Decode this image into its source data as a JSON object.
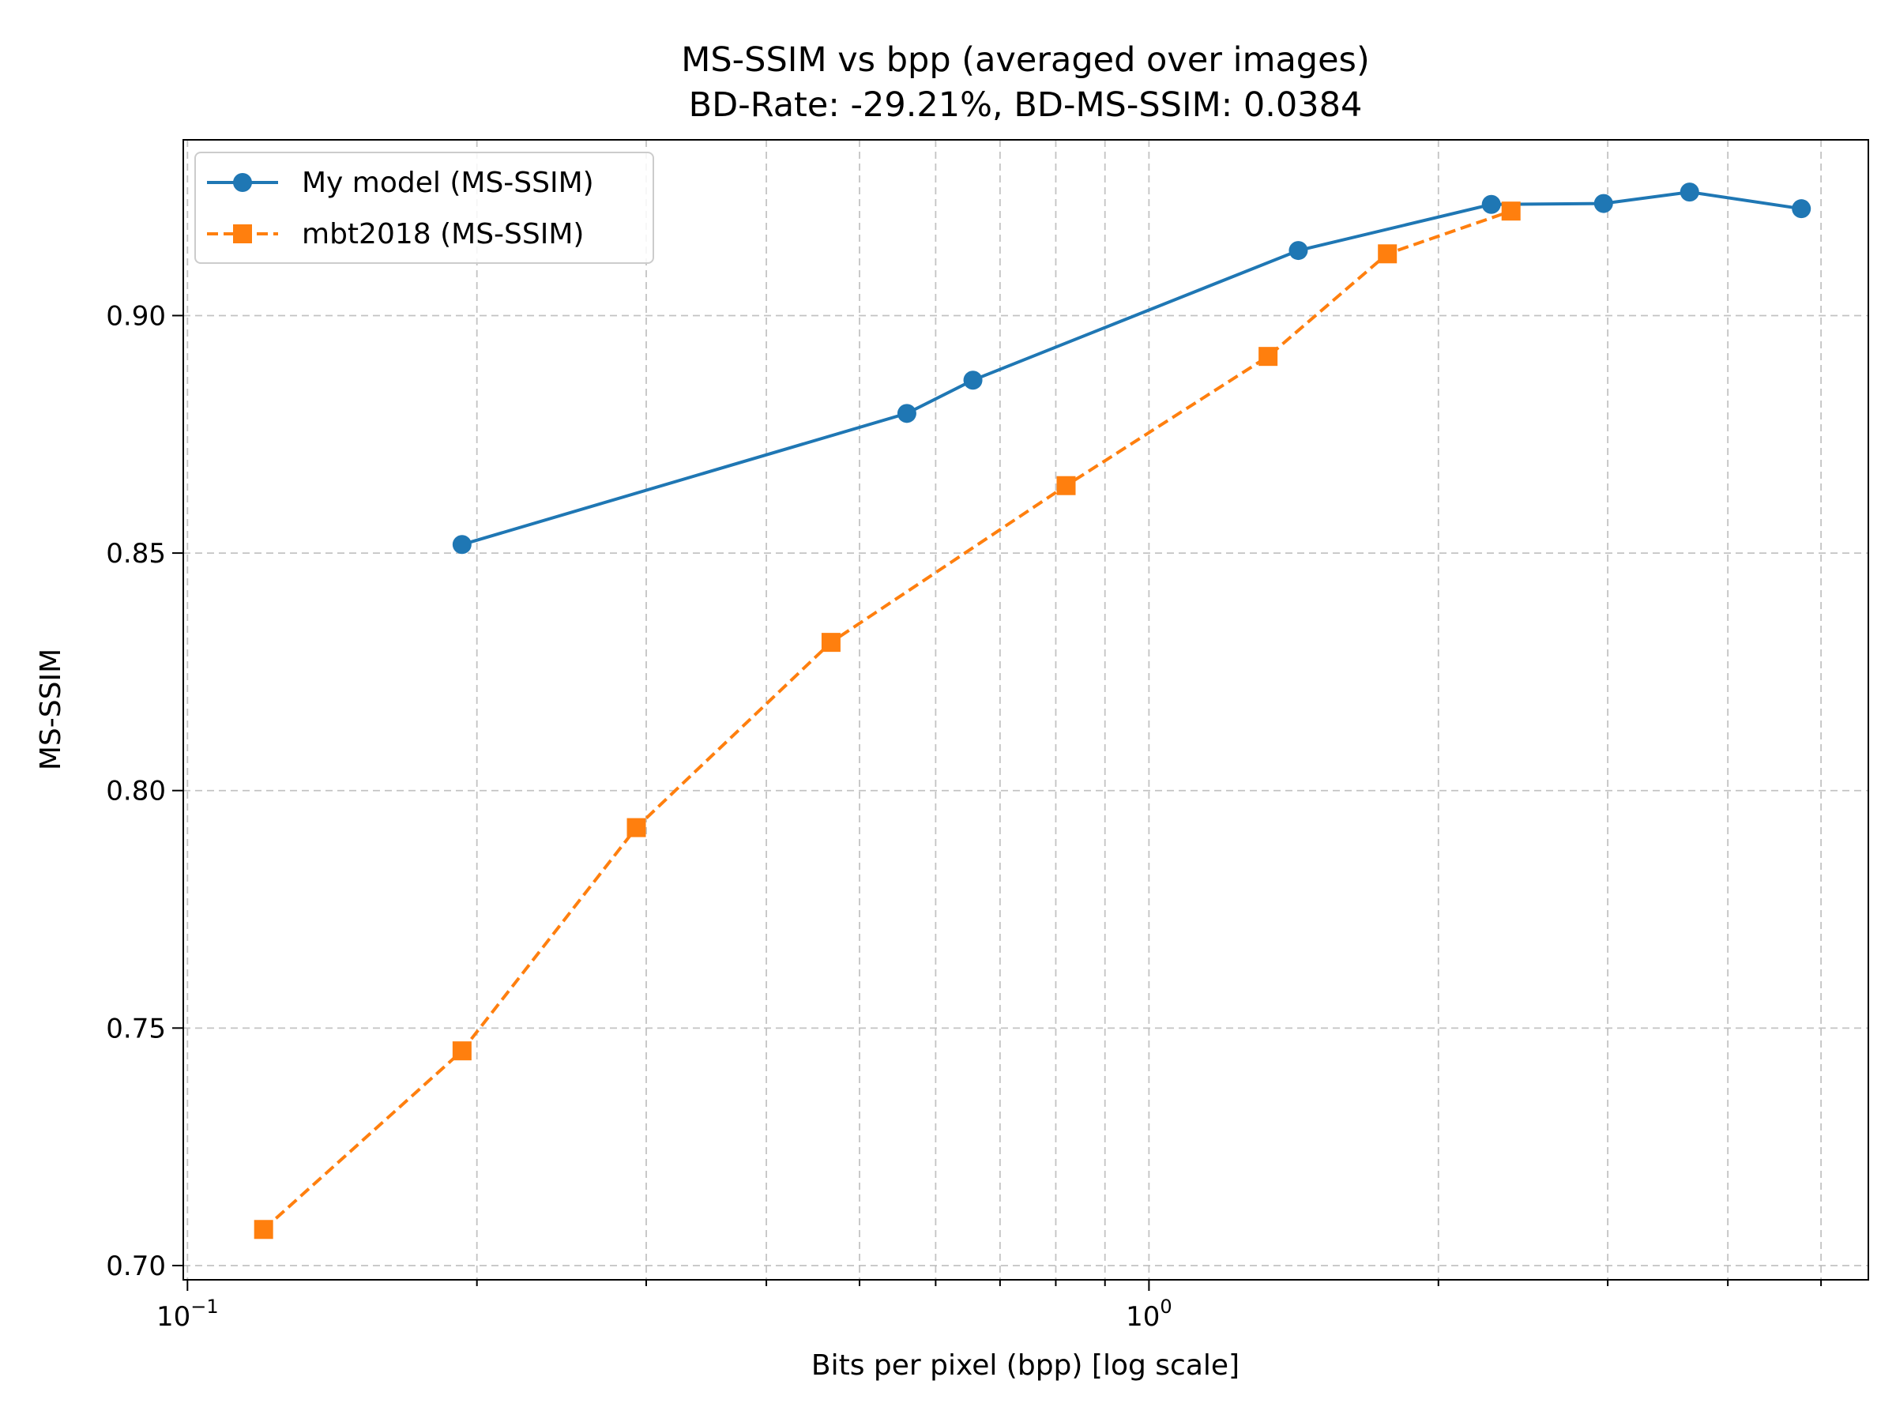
{
  "chart_data": {
    "type": "line",
    "title": "MS-SSIM vs bpp (averaged over images)",
    "subtitle": "BD-Rate: -29.21%, BD-MS-SSIM: 0.0384",
    "xlabel": "Bits per pixel (bpp) [log scale]",
    "ylabel": "MS-SSIM",
    "xscale": "log",
    "xlim": [
      0.099,
      5.6
    ],
    "ylim": [
      0.697,
      0.937
    ],
    "x_major_ticks": [
      0.1,
      1
    ],
    "x_major_tick_labels": [
      {
        "base": "10",
        "exp": "−1"
      },
      {
        "base": "10",
        "exp": "0"
      }
    ],
    "x_minor_ticks": [
      0.2,
      0.3,
      0.4,
      0.5,
      0.6,
      0.7,
      0.8,
      0.9,
      2,
      3,
      4,
      5
    ],
    "y_ticks": [
      0.7,
      0.75,
      0.8,
      0.85,
      0.9
    ],
    "y_tick_labels": [
      "0.70",
      "0.75",
      "0.80",
      "0.85",
      "0.90"
    ],
    "grid": true,
    "legend_position": "top-left",
    "series": [
      {
        "name": "My model (MS-SSIM)",
        "color": "#1f77b4",
        "marker": "circle",
        "linestyle": "solid",
        "x": [
          0.193,
          0.56,
          0.656,
          1.43,
          2.27,
          2.97,
          3.65,
          4.77
        ],
        "y": [
          0.8518,
          0.8794,
          0.8864,
          0.9137,
          0.9234,
          0.9236,
          0.926,
          0.9225
        ]
      },
      {
        "name": "mbt2018 (MS-SSIM)",
        "color": "#ff7f0e",
        "marker": "square",
        "linestyle": "dashed",
        "x": [
          0.12,
          0.193,
          0.293,
          0.467,
          0.82,
          1.33,
          1.77,
          2.38
        ],
        "y": [
          0.7076,
          0.7452,
          0.7922,
          0.8312,
          0.8642,
          0.8914,
          0.913,
          0.922
        ]
      }
    ]
  }
}
